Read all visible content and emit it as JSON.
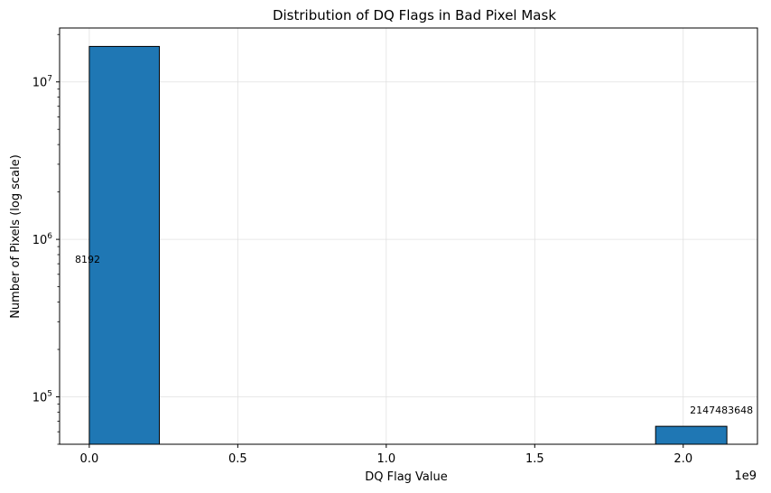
{
  "chart_data": {
    "type": "bar",
    "title": "Distribution of DQ Flags in Bad Pixel Mask",
    "xlabel": "DQ Flag Value",
    "ylabel": "Number of Pixels (log scale)",
    "x_offset_label": "1e9",
    "x_scale_note": "x axis values are multiples of 1e9",
    "yscale": "log",
    "xlim": [
      -0.1,
      2.25
    ],
    "ylim": [
      50000,
      22000000
    ],
    "grid": true,
    "x_ticks": [
      {
        "value": 0.0,
        "label": "0.0"
      },
      {
        "value": 0.5,
        "label": "0.5"
      },
      {
        "value": 1.0,
        "label": "1.0"
      },
      {
        "value": 1.5,
        "label": "1.5"
      },
      {
        "value": 2.0,
        "label": "2.0"
      }
    ],
    "y_ticks": [
      {
        "value": 100000,
        "base": "10",
        "exp": "5"
      },
      {
        "value": 1000000,
        "base": "10",
        "exp": "6"
      },
      {
        "value": 10000000,
        "base": "10",
        "exp": "7"
      }
    ],
    "bars": [
      {
        "x0": 0.0,
        "x1": 0.236,
        "value": 16800000,
        "annotation": "8192"
      },
      {
        "x0": 1.907,
        "x1": 2.147,
        "value": 65000,
        "annotation": "2147483648"
      }
    ],
    "bar_color": "#1f77b4",
    "bar_edge_color": "#000000",
    "grid_color": "#e0e0e0"
  }
}
